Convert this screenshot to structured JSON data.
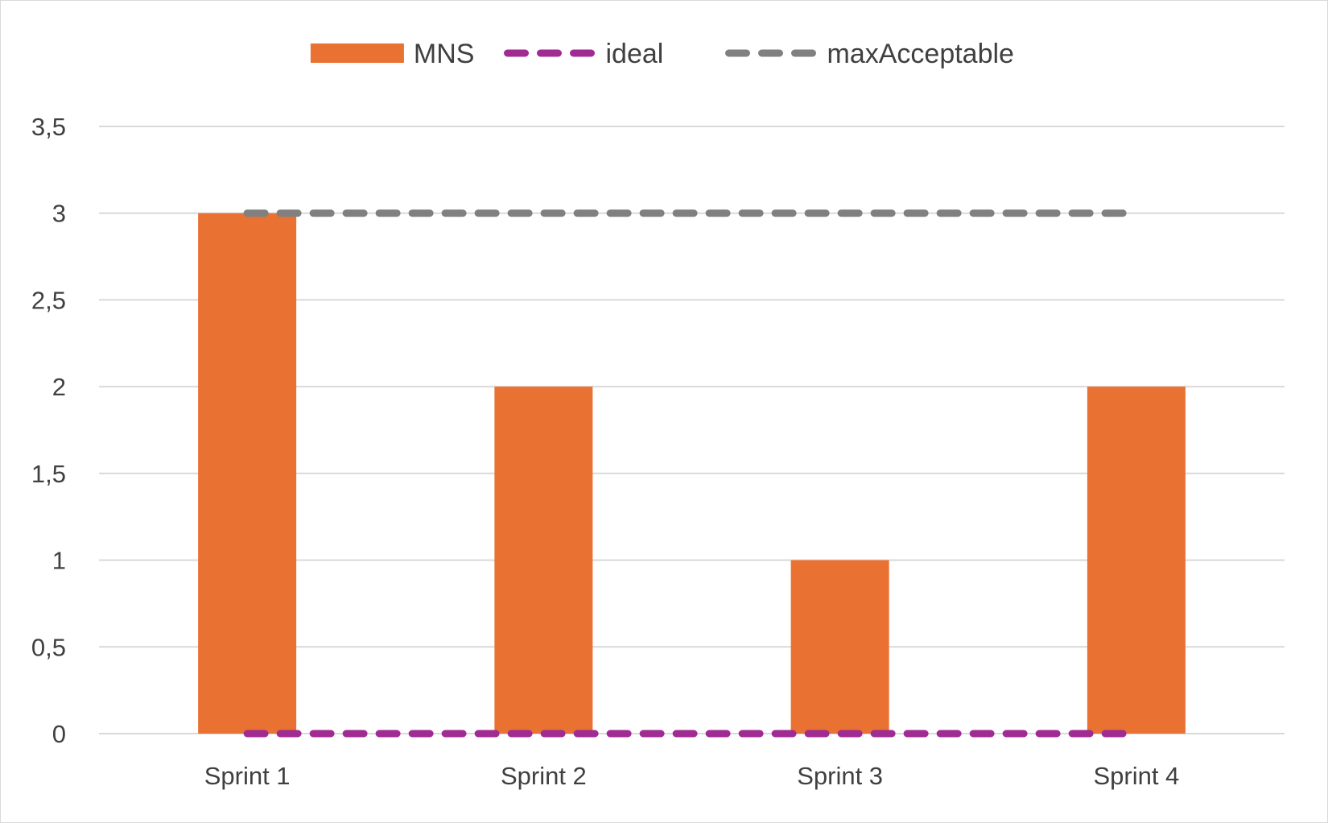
{
  "chart_data": {
    "type": "bar",
    "categories": [
      "Sprint 1",
      "Sprint 2",
      "Sprint 3",
      "Sprint 4"
    ],
    "series": [
      {
        "name": "MNS",
        "kind": "bar",
        "values": [
          3,
          2,
          1,
          2
        ],
        "color": "#E97132"
      },
      {
        "name": "ideal",
        "kind": "line",
        "style": "dashed",
        "values": [
          0,
          0,
          0,
          0
        ],
        "color": "#A02B93"
      },
      {
        "name": "maxAcceptable",
        "kind": "line",
        "style": "dashed",
        "values": [
          3,
          3,
          3,
          3
        ],
        "color": "#808080"
      }
    ],
    "ylim": [
      0,
      3.5
    ],
    "yticks": [
      0,
      0.5,
      1,
      1.5,
      2,
      2.5,
      3,
      3.5
    ],
    "ytick_labels": [
      "0",
      "0,5",
      "1",
      "1,5",
      "2",
      "2,5",
      "3",
      "3,5"
    ],
    "grid": true,
    "legend_position": "top",
    "title": "",
    "xlabel": "",
    "ylabel": ""
  }
}
